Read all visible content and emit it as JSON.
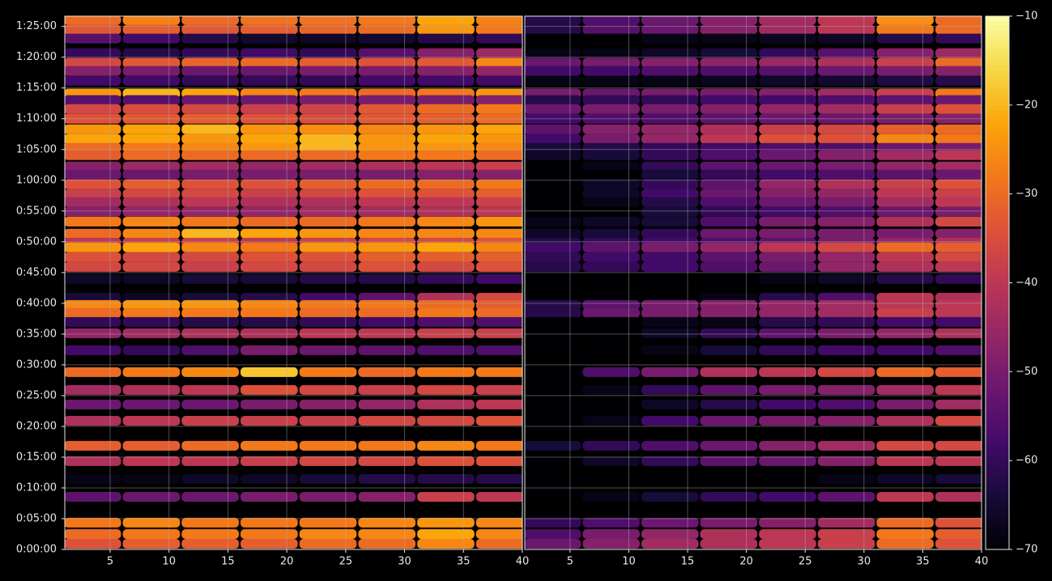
{
  "chart_data": {
    "type": "heatmap",
    "ylim": [
      0,
      5200
    ],
    "yticks": [
      {
        "value": 0,
        "label": "0:00:00"
      },
      {
        "value": 300,
        "label": "0:05:00"
      },
      {
        "value": 600,
        "label": "0:10:00"
      },
      {
        "value": 900,
        "label": "0:15:00"
      },
      {
        "value": 1200,
        "label": "0:20:00"
      },
      {
        "value": 1500,
        "label": "0:25:00"
      },
      {
        "value": 1800,
        "label": "0:30:00"
      },
      {
        "value": 2100,
        "label": "0:35:00"
      },
      {
        "value": 2400,
        "label": "0:40:00"
      },
      {
        "value": 2700,
        "label": "0:45:00"
      },
      {
        "value": 3000,
        "label": "0:50:00"
      },
      {
        "value": 3300,
        "label": "0:55:00"
      },
      {
        "value": 3600,
        "label": "1:00:00"
      },
      {
        "value": 3900,
        "label": "1:05:00"
      },
      {
        "value": 4200,
        "label": "1:10:00"
      },
      {
        "value": 4500,
        "label": "1:15:00"
      },
      {
        "value": 4800,
        "label": "1:20:00"
      },
      {
        "value": 5100,
        "label": "1:25:00"
      }
    ],
    "grid": true,
    "y": [
      5163,
      5070,
      4982,
      4840,
      4745,
      4666,
      4571,
      4445,
      4382,
      4295,
      4200,
      4097,
      4003,
      3916,
      3845,
      3734,
      3655,
      3561,
      3466,
      3387,
      3292,
      3197,
      3079,
      2992,
      2945,
      2850,
      2755,
      2637,
      2455,
      2384,
      2305,
      2218,
      2108,
      1942,
      1729,
      1555,
      1413,
      1255,
      1011,
      861,
      687,
      513,
      261,
      150,
      55
    ],
    "colorbar": {
      "clim": [
        -70,
        -10
      ],
      "ticks": [
        {
          "value": -70,
          "label": "−70"
        },
        {
          "value": -60,
          "label": "−60"
        },
        {
          "value": -50,
          "label": "−50"
        },
        {
          "value": -40,
          "label": "−40"
        },
        {
          "value": -30,
          "label": "−30"
        },
        {
          "value": -20,
          "label": "−20"
        },
        {
          "value": -10,
          "label": "−10"
        }
      ]
    },
    "panels": [
      {
        "xlim": [
          1.15,
          40
        ],
        "xticks": [
          5,
          10,
          15,
          20,
          25,
          30,
          35,
          40
        ],
        "x": [
          3.5,
          8.5,
          13.5,
          18.5,
          23.5,
          28.5,
          33.5,
          38.5
        ],
        "values": [
          [
            -30,
            -27,
            -30,
            -29,
            -29,
            -28,
            -22,
            -27
          ],
          [
            -33,
            -32,
            -33,
            -32,
            -31,
            -30,
            -24,
            -28
          ],
          [
            -55,
            -58,
            -62,
            -65,
            -66,
            -65,
            -62,
            -60
          ],
          [
            -60,
            -62,
            -60,
            -58,
            -60,
            -55,
            -48,
            -45
          ],
          [
            -36,
            -33,
            -31,
            -30,
            -32,
            -34,
            -33,
            -26
          ],
          [
            -48,
            -50,
            -52,
            -52,
            -50,
            -50,
            -48,
            -46
          ],
          [
            -58,
            -58,
            -60,
            -60,
            -60,
            -58,
            -58,
            -58
          ],
          [
            -24,
            -20,
            -22,
            -26,
            -28,
            -30,
            -28,
            -24
          ],
          [
            -55,
            -55,
            -52,
            -52,
            -50,
            -50,
            -50,
            -48
          ],
          [
            -36,
            -35,
            -36,
            -38,
            -37,
            -33,
            -30,
            -28
          ],
          [
            -34,
            -33,
            -32,
            -34,
            -35,
            -33,
            -32,
            -30
          ],
          [
            -24,
            -22,
            -20,
            -24,
            -25,
            -26,
            -24,
            -22
          ],
          [
            -22,
            -22,
            -24,
            -22,
            -20,
            -24,
            -22,
            -24
          ],
          [
            -30,
            -28,
            -26,
            -24,
            -20,
            -24,
            -24,
            -26
          ],
          [
            -32,
            -30,
            -30,
            -30,
            -30,
            -28,
            -28,
            -30
          ],
          [
            -48,
            -45,
            -44,
            -46,
            -44,
            -42,
            -40,
            -38
          ],
          [
            -52,
            -52,
            -50,
            -50,
            -50,
            -50,
            -48,
            -48
          ],
          [
            -34,
            -32,
            -34,
            -34,
            -32,
            -30,
            -30,
            -28
          ],
          [
            -38,
            -36,
            -36,
            -38,
            -36,
            -34,
            -34,
            -32
          ],
          [
            -44,
            -42,
            -40,
            -42,
            -42,
            -40,
            -40,
            -38
          ],
          [
            -48,
            -46,
            -46,
            -46,
            -44,
            -44,
            -42,
            -40
          ],
          [
            -28,
            -26,
            -28,
            -30,
            -30,
            -28,
            -26,
            -24
          ],
          [
            -30,
            -26,
            -20,
            -22,
            -24,
            -26,
            -26,
            -26
          ],
          [
            -40,
            -38,
            -38,
            -40,
            -38,
            -36,
            -36,
            -34
          ],
          [
            -24,
            -22,
            -26,
            -28,
            -24,
            -24,
            -22,
            -26
          ],
          [
            -34,
            -36,
            -36,
            -34,
            -34,
            -32,
            -32,
            -32
          ],
          [
            -36,
            -36,
            -38,
            -36,
            -36,
            -34,
            -36,
            -34
          ],
          [
            -66,
            -66,
            -64,
            -64,
            -62,
            -62,
            -60,
            -58
          ],
          [
            -64,
            -66,
            -64,
            -62,
            -58,
            -54,
            -42,
            -36
          ],
          [
            -26,
            -24,
            -24,
            -26,
            -28,
            -28,
            -30,
            -32
          ],
          [
            -30,
            -28,
            -28,
            -28,
            -30,
            -30,
            -28,
            -30
          ],
          [
            -60,
            -60,
            -62,
            -62,
            -60,
            -58,
            -56,
            -56
          ],
          [
            -46,
            -44,
            -42,
            -42,
            -40,
            -40,
            -38,
            -38
          ],
          [
            -58,
            -60,
            -56,
            -50,
            -52,
            -54,
            -56,
            -56
          ],
          [
            -30,
            -28,
            -26,
            -18,
            -28,
            -30,
            -28,
            -28
          ],
          [
            -44,
            -42,
            -40,
            -34,
            -36,
            -38,
            -36,
            -38
          ],
          [
            -52,
            -52,
            -52,
            -50,
            -48,
            -46,
            -42,
            -40
          ],
          [
            -42,
            -40,
            -38,
            -38,
            -38,
            -36,
            -36,
            -34
          ],
          [
            -32,
            -32,
            -30,
            -28,
            -28,
            -28,
            -26,
            -28
          ],
          [
            -42,
            -40,
            -40,
            -38,
            -36,
            -36,
            -34,
            -34
          ],
          [
            -68,
            -68,
            -66,
            -66,
            -64,
            -62,
            -62,
            -62
          ],
          [
            -54,
            -52,
            -52,
            -50,
            -50,
            -48,
            -38,
            -40
          ],
          [
            -28,
            -26,
            -28,
            -28,
            -28,
            -26,
            -24,
            -26
          ],
          [
            -30,
            -28,
            -28,
            -28,
            -26,
            -26,
            -22,
            -26
          ],
          [
            -34,
            -32,
            -32,
            -32,
            -30,
            -30,
            -26,
            -30
          ]
        ]
      },
      {
        "xlim": [
          1.15,
          40
        ],
        "xticks": [
          5,
          10,
          15,
          20,
          25,
          30,
          35,
          40
        ],
        "x": [
          3.5,
          8.5,
          13.5,
          18.5,
          23.5,
          28.5,
          33.5,
          38.5
        ],
        "values": [
          [
            -62,
            -56,
            -52,
            -48,
            -44,
            -40,
            -25,
            -30
          ],
          [
            -62,
            -55,
            -52,
            -48,
            -44,
            -40,
            -28,
            -30
          ],
          [
            -70,
            -70,
            -68,
            -68,
            -67,
            -66,
            -62,
            -60
          ],
          [
            -68,
            -68,
            -66,
            -64,
            -60,
            -55,
            -48,
            -45
          ],
          [
            -52,
            -50,
            -48,
            -47,
            -45,
            -42,
            -38,
            -30
          ],
          [
            -58,
            -58,
            -56,
            -56,
            -55,
            -52,
            -50,
            -48
          ],
          [
            -68,
            -68,
            -68,
            -67,
            -66,
            -65,
            -63,
            -62
          ],
          [
            -50,
            -52,
            -50,
            -50,
            -48,
            -44,
            -38,
            -28
          ],
          [
            -62,
            -60,
            -60,
            -58,
            -58,
            -56,
            -54,
            -52
          ],
          [
            -52,
            -50,
            -50,
            -48,
            -46,
            -44,
            -38,
            -34
          ],
          [
            -58,
            -56,
            -56,
            -54,
            -52,
            -52,
            -50,
            -48
          ],
          [
            -54,
            -48,
            -46,
            -42,
            -38,
            -36,
            -32,
            -30
          ],
          [
            -58,
            -50,
            -46,
            -40,
            -34,
            -34,
            -26,
            -28
          ],
          [
            -64,
            -62,
            -60,
            -58,
            -56,
            -56,
            -52,
            -50
          ],
          [
            -66,
            -64,
            -60,
            -56,
            -52,
            -48,
            -44,
            -40
          ],
          [
            -70,
            -68,
            -60,
            -54,
            -52,
            -50,
            -46,
            -44
          ],
          [
            -70,
            -70,
            -64,
            -60,
            -58,
            -56,
            -54,
            -52
          ],
          [
            -70,
            -66,
            -60,
            -54,
            -46,
            -42,
            -38,
            -34
          ],
          [
            -70,
            -66,
            -58,
            -52,
            -48,
            -46,
            -40,
            -38
          ],
          [
            -70,
            -68,
            -62,
            -56,
            -52,
            -50,
            -44,
            -40
          ],
          [
            -70,
            -70,
            -64,
            -60,
            -58,
            -56,
            -52,
            -50
          ],
          [
            -68,
            -66,
            -64,
            -56,
            -50,
            -48,
            -42,
            -36
          ],
          [
            -66,
            -64,
            -60,
            -52,
            -50,
            -50,
            -50,
            -48
          ],
          [
            -62,
            -60,
            -58,
            -56,
            -54,
            -50,
            -46,
            -42
          ],
          [
            -58,
            -54,
            -50,
            -46,
            -40,
            -36,
            -30,
            -32
          ],
          [
            -60,
            -58,
            -58,
            -54,
            -50,
            -46,
            -40,
            -36
          ],
          [
            -62,
            -60,
            -58,
            -56,
            -52,
            -46,
            -42,
            -40
          ],
          [
            -70,
            -70,
            -70,
            -70,
            -68,
            -66,
            -62,
            -60
          ],
          [
            -70,
            -70,
            -70,
            -68,
            -62,
            -56,
            -40,
            -42
          ],
          [
            -62,
            -54,
            -50,
            -48,
            -46,
            -44,
            -40,
            -40
          ],
          [
            -62,
            -52,
            -50,
            -48,
            -46,
            -44,
            -38,
            -40
          ],
          [
            -70,
            -70,
            -68,
            -68,
            -62,
            -60,
            -58,
            -58
          ],
          [
            -70,
            -70,
            -66,
            -60,
            -54,
            -50,
            -46,
            -42
          ],
          [
            -70,
            -70,
            -68,
            -64,
            -60,
            -58,
            -58,
            -56
          ],
          [
            -70,
            -56,
            -50,
            -42,
            -40,
            -36,
            -30,
            -32
          ],
          [
            -70,
            -68,
            -60,
            -54,
            -50,
            -48,
            -44,
            -40
          ],
          [
            -70,
            -70,
            -66,
            -62,
            -58,
            -56,
            -50,
            -44
          ],
          [
            -70,
            -68,
            -58,
            -52,
            -50,
            -48,
            -42,
            -36
          ],
          [
            -64,
            -60,
            -56,
            -52,
            -48,
            -44,
            -36,
            -36
          ],
          [
            -70,
            -66,
            -60,
            -54,
            -52,
            -48,
            -40,
            -40
          ],
          [
            -70,
            -70,
            -70,
            -70,
            -70,
            -68,
            -66,
            -64
          ],
          [
            -70,
            -68,
            -64,
            -60,
            -58,
            -54,
            -40,
            -42
          ],
          [
            -60,
            -56,
            -52,
            -50,
            -48,
            -44,
            -30,
            -34
          ],
          [
            -56,
            -50,
            -46,
            -42,
            -40,
            -38,
            -28,
            -32
          ],
          [
            -52,
            -48,
            -44,
            -42,
            -40,
            -38,
            -30,
            -34
          ]
        ]
      }
    ]
  }
}
